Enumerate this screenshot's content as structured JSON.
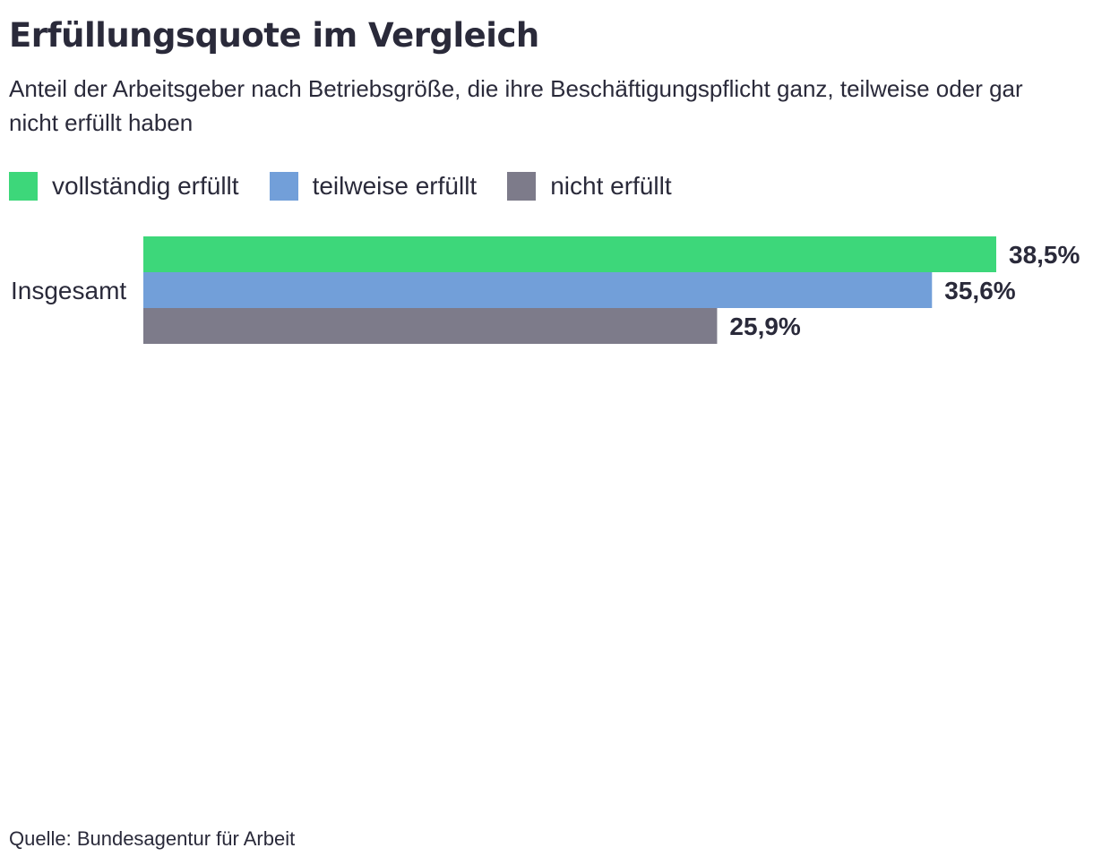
{
  "chart_data": {
    "type": "bar",
    "orientation": "horizontal",
    "title": "Erfüllungsquote im Vergleich",
    "subtitle": "Anteil der Arbeitsgeber nach Betriebsgröße, die ihre Beschäftigungspflicht ganz, teilweise oder gar nicht erfüllt haben",
    "categories": [
      "Insgesamt"
    ],
    "series": [
      {
        "name": "vollständig erfüllt",
        "color": "#3dd77a",
        "values": [
          38.5
        ],
        "labels": [
          "38,5%"
        ]
      },
      {
        "name": "teilweise erfüllt",
        "color": "#729fd9",
        "values": [
          35.6
        ],
        "labels": [
          "35,6%"
        ]
      },
      {
        "name": "nicht erfüllt",
        "color": "#7d7b8a",
        "values": [
          25.9
        ],
        "labels": [
          "25,9%"
        ]
      }
    ],
    "xlim": [
      0,
      38.5
    ],
    "xlabel": "",
    "ylabel": "",
    "grid": false,
    "legend_position": "top-left",
    "source": "Quelle: Bundesagentur für Arbeit"
  }
}
